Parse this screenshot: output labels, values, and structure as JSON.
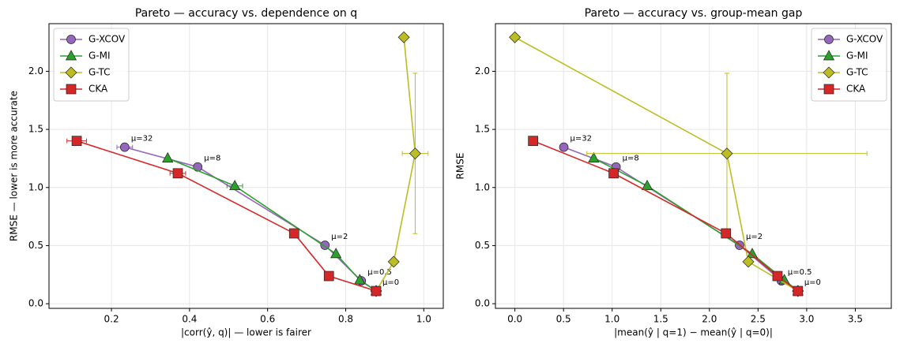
{
  "chart_data": [
    {
      "type": "line",
      "title": "Pareto — accuracy vs. dependence on q",
      "xlabel": "|corr(ŷ, q)|  —  lower is fairer",
      "ylabel": "RMSE  —  lower is more accurate",
      "xlim": [
        0.04,
        1.05
      ],
      "ylim": [
        -0.04,
        2.41
      ],
      "xticks": [
        0.2,
        0.4,
        0.6,
        0.8,
        {
          "value": 1.0,
          "label": "1.0"
        }
      ],
      "yticks": [
        {
          "value": 0,
          "label": "0.0"
        },
        0.5,
        {
          "value": 1.0,
          "label": "1.0"
        },
        1.5,
        {
          "value": 2.0,
          "label": "2.0"
        }
      ],
      "grid": true,
      "legend": "upper left",
      "series": [
        {
          "name": "G-XCOV",
          "color": "#9467bd",
          "marker": "circle",
          "x": [
            0.234,
            0.421,
            0.747,
            0.84,
            0.878
          ],
          "values": [
            1.347,
            1.177,
            0.503,
            0.197,
            0.109
          ],
          "xerr": [
            0.02,
            null,
            null,
            null,
            null
          ],
          "yerr": [
            null,
            null,
            null,
            null,
            null
          ],
          "point_labels": [
            "μ=32",
            "μ=8",
            "μ=2",
            "μ=0.5",
            "μ=0"
          ]
        },
        {
          "name": "G-MI",
          "color": "#2ca02c",
          "marker": "triangle",
          "x": [
            0.344,
            0.516,
            0.775,
            0.836,
            0.878
          ],
          "values": [
            1.252,
            1.014,
            0.429,
            0.204,
            0.109
          ],
          "xerr": [
            null,
            0.02,
            null,
            null,
            null
          ],
          "yerr": [
            null,
            null,
            null,
            null,
            null
          ]
        },
        {
          "name": "G-TC",
          "color": "#bcbd22",
          "marker": "diamond",
          "x": [
            0.949,
            0.978,
            0.923,
            0.878
          ],
          "values": [
            2.293,
            1.293,
            0.361,
            0.109
          ],
          "xerr": [
            null,
            0.033,
            null,
            null
          ],
          "yerr": [
            null,
            0.69,
            null,
            null
          ]
        },
        {
          "name": "CKA",
          "color": "#d62728",
          "marker": "square",
          "x": [
            0.111,
            0.37,
            0.668,
            0.757,
            0.878
          ],
          "values": [
            1.401,
            1.122,
            0.605,
            0.238,
            0.109
          ],
          "xerr": [
            0.025,
            0.02,
            null,
            null,
            null
          ],
          "yerr": [
            null,
            null,
            null,
            null,
            null
          ]
        }
      ]
    },
    {
      "type": "line",
      "title": "Pareto — accuracy vs. group-mean gap",
      "xlabel": "|mean(ŷ | q=1) − mean(ŷ | q=0)|",
      "ylabel": "RMSE",
      "xlim": [
        -0.2,
        3.87
      ],
      "ylim": [
        -0.04,
        2.41
      ],
      "xticks": [
        {
          "value": 0,
          "label": "0.0"
        },
        0.5,
        {
          "value": 1.0,
          "label": "1.0"
        },
        1.5,
        {
          "value": 2.0,
          "label": "2.0"
        },
        2.5,
        {
          "value": 3.0,
          "label": "3.0"
        },
        3.5
      ],
      "yticks": [
        {
          "value": 0,
          "label": "0.0"
        },
        0.5,
        {
          "value": 1.0,
          "label": "1.0"
        },
        1.5,
        {
          "value": 2.0,
          "label": "2.0"
        }
      ],
      "grid": true,
      "legend": "upper right",
      "series": [
        {
          "name": "G-XCOV",
          "color": "#9467bd",
          "marker": "circle",
          "x": [
            0.503,
            1.04,
            2.31,
            2.74,
            2.91
          ],
          "values": [
            1.347,
            1.177,
            0.503,
            0.197,
            0.109
          ],
          "xerr": [
            null,
            null,
            null,
            null,
            null
          ],
          "yerr": [
            null,
            null,
            null,
            null,
            null
          ],
          "point_labels": [
            "μ=32",
            "μ=8",
            "μ=2",
            "μ=0.5",
            "μ=0"
          ]
        },
        {
          "name": "G-MI",
          "color": "#2ca02c",
          "marker": "triangle",
          "x": [
            0.81,
            1.36,
            2.44,
            2.77,
            2.91
          ],
          "values": [
            1.252,
            1.014,
            0.429,
            0.204,
            0.109
          ],
          "xerr": [
            null,
            null,
            null,
            null,
            null
          ],
          "yerr": [
            null,
            null,
            null,
            null,
            null
          ]
        },
        {
          "name": "G-TC",
          "color": "#bcbd22",
          "marker": "diamond",
          "x": [
            0.0,
            2.18,
            2.4,
            2.91
          ],
          "values": [
            2.293,
            1.293,
            0.361,
            0.109
          ],
          "xerr": [
            null,
            1.44,
            null,
            null
          ],
          "yerr": [
            null,
            0.69,
            null,
            null
          ]
        },
        {
          "name": "CKA",
          "color": "#d62728",
          "marker": "square",
          "x": [
            0.187,
            1.015,
            2.17,
            2.7,
            2.91
          ],
          "values": [
            1.401,
            1.122,
            0.605,
            0.238,
            0.109
          ],
          "xerr": [
            null,
            null,
            null,
            null,
            null
          ],
          "yerr": [
            null,
            null,
            null,
            null,
            null
          ]
        }
      ]
    }
  ]
}
